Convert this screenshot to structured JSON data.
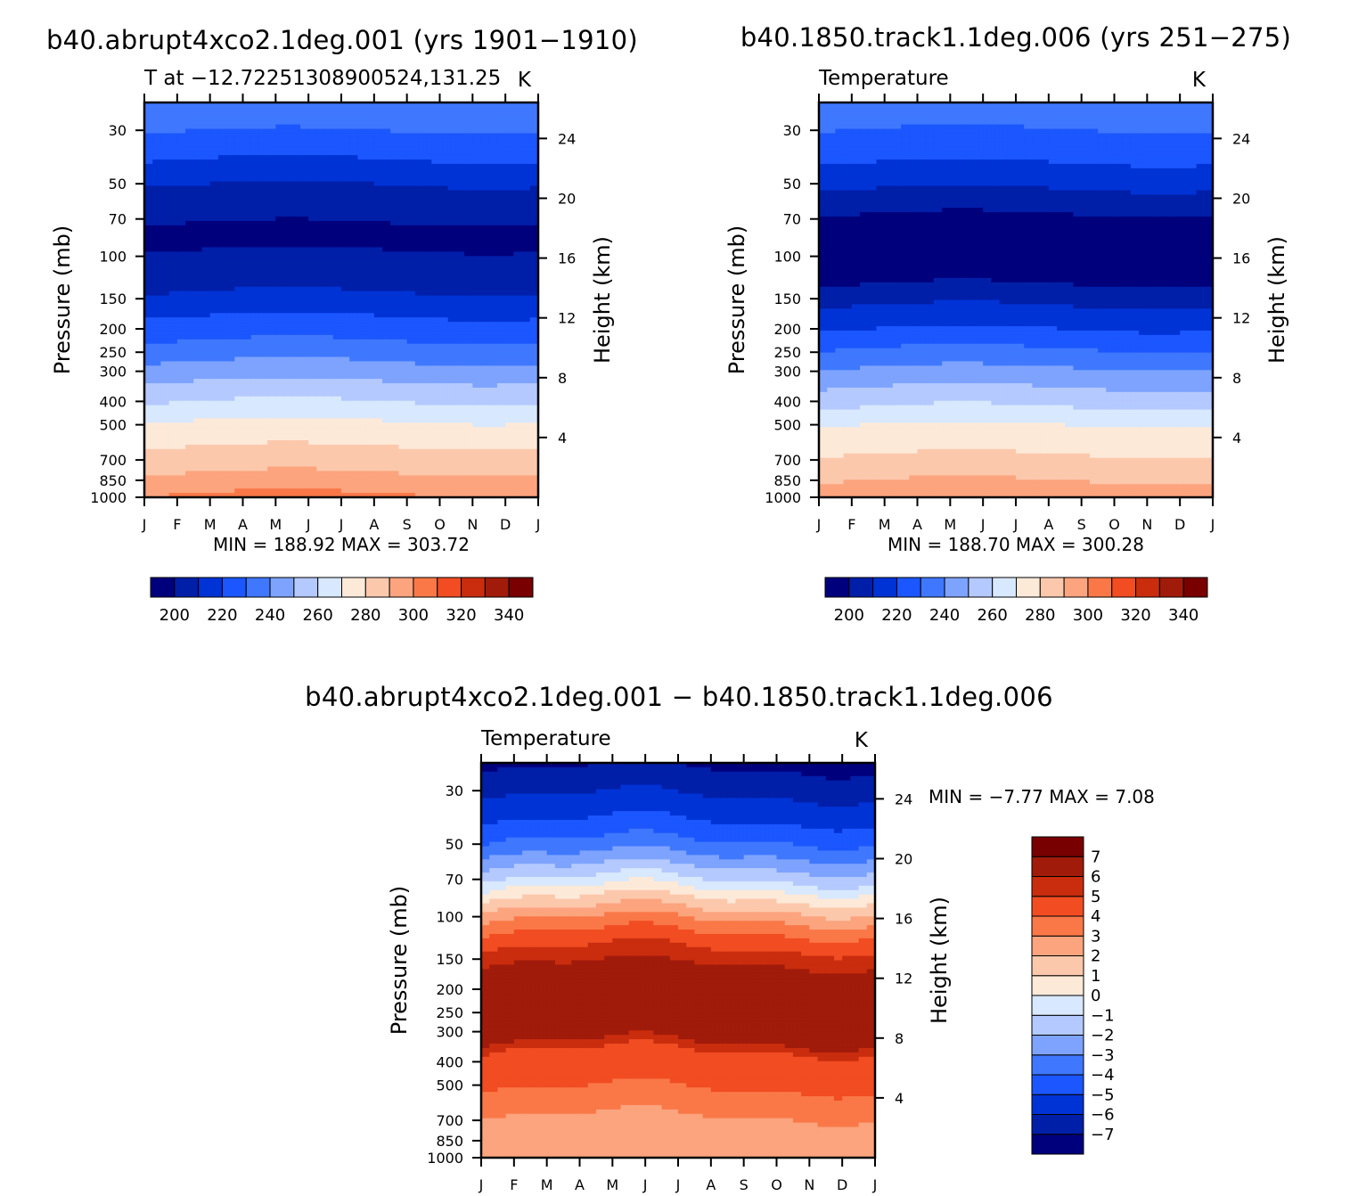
{
  "figure": {
    "title_left": "b40.abrupt4xco2.1deg.001 (yrs 1901−1910)",
    "title_right": "b40.1850.track1.1deg.006 (yrs 251−275)",
    "title_diff": "b40.abrupt4xco2.1deg.001 − b40.1850.track1.1deg.006"
  },
  "chart_data": [
    {
      "type": "heatmap",
      "id": "abrupt4xco2",
      "subtitle_left": "T at −12.72251308900524,131.25",
      "subtitle_right": "K",
      "xlabel": "",
      "ylabel": "Pressure (mb)",
      "ylabel_right": "Height (km)",
      "x_categories": [
        "J",
        "F",
        "M",
        "A",
        "M",
        "J",
        "J",
        "A",
        "S",
        "O",
        "N",
        "D",
        "J"
      ],
      "y_ticks": [
        30,
        50,
        70,
        100,
        150,
        200,
        250,
        300,
        400,
        500,
        700,
        850,
        1000
      ],
      "y_right_ticks": [
        4,
        8,
        12,
        16,
        20,
        24
      ],
      "y_scale": "log",
      "y_range": [
        1000,
        23
      ],
      "stats": "MIN = 188.92 MAX = 303.72",
      "min": 188.92,
      "max": 303.72,
      "colorbar": {
        "orientation": "horizontal",
        "levels": [
          190,
          200,
          210,
          220,
          230,
          240,
          250,
          260,
          270,
          280,
          290,
          300,
          310,
          320,
          330,
          340
        ],
        "labels": [
          "200",
          "220",
          "240",
          "260",
          "280",
          "300",
          "320",
          "340"
        ],
        "colors": [
          "#00007d",
          "#001fa8",
          "#0033d6",
          "#1b56ff",
          "#3f78ff",
          "#7ea3ff",
          "#b4c9ff",
          "#d8e8ff",
          "#fde9d8",
          "#fcc8ac",
          "#fca47e",
          "#fa7848",
          "#f14c22",
          "#c92d0e",
          "#a01b0a",
          "#780000"
        ]
      },
      "profile": [
        {
          "p": 23,
          "value": 239
        },
        {
          "p": 35,
          "value": 225
        },
        {
          "p": 57,
          "value": 205
        },
        {
          "p": 80,
          "value": 198
        },
        {
          "p": 120,
          "value": 203
        },
        {
          "p": 150,
          "value": 213
        },
        {
          "p": 200,
          "value": 225
        },
        {
          "p": 250,
          "value": 235
        },
        {
          "p": 300,
          "value": 245
        },
        {
          "p": 400,
          "value": 260
        },
        {
          "p": 500,
          "value": 272
        },
        {
          "p": 700,
          "value": 285
        },
        {
          "p": 850,
          "value": 293
        },
        {
          "p": 1000,
          "value": 302
        }
      ]
    },
    {
      "type": "heatmap",
      "id": "track1",
      "subtitle_left": "Temperature",
      "subtitle_right": "K",
      "xlabel": "",
      "ylabel": "Pressure (mb)",
      "ylabel_right": "Height (km)",
      "x_categories": [
        "J",
        "F",
        "M",
        "A",
        "M",
        "J",
        "J",
        "A",
        "S",
        "O",
        "N",
        "D",
        "J"
      ],
      "y_ticks": [
        30,
        50,
        70,
        100,
        150,
        200,
        250,
        300,
        400,
        500,
        700,
        850,
        1000
      ],
      "y_right_ticks": [
        4,
        8,
        12,
        16,
        20,
        24
      ],
      "y_scale": "log",
      "y_range": [
        1000,
        23
      ],
      "stats": "MIN = 188.70 MAX = 300.28",
      "min": 188.7,
      "max": 300.28,
      "colorbar": {
        "orientation": "horizontal",
        "levels": [
          190,
          200,
          210,
          220,
          230,
          240,
          250,
          260,
          270,
          280,
          290,
          300,
          310,
          320,
          330,
          340
        ],
        "labels": [
          "200",
          "220",
          "240",
          "260",
          "280",
          "300",
          "320",
          "340"
        ],
        "colors": [
          "#00007d",
          "#001fa8",
          "#0033d6",
          "#1b56ff",
          "#3f78ff",
          "#7ea3ff",
          "#b4c9ff",
          "#d8e8ff",
          "#fde9d8",
          "#fcc8ac",
          "#fca47e",
          "#fa7848",
          "#f14c22",
          "#c92d0e",
          "#a01b0a",
          "#780000"
        ]
      },
      "profile": [
        {
          "p": 23,
          "value": 236
        },
        {
          "p": 35,
          "value": 226
        },
        {
          "p": 50,
          "value": 212
        },
        {
          "p": 70,
          "value": 198
        },
        {
          "p": 120,
          "value": 196
        },
        {
          "p": 150,
          "value": 207
        },
        {
          "p": 200,
          "value": 220
        },
        {
          "p": 250,
          "value": 232
        },
        {
          "p": 300,
          "value": 242
        },
        {
          "p": 400,
          "value": 257
        },
        {
          "p": 500,
          "value": 270
        },
        {
          "p": 700,
          "value": 282
        },
        {
          "p": 850,
          "value": 290
        },
        {
          "p": 1000,
          "value": 298
        }
      ]
    },
    {
      "type": "heatmap",
      "id": "difference",
      "subtitle_left": "Temperature",
      "subtitle_right": "K",
      "xlabel": "",
      "ylabel": "Pressure (mb)",
      "ylabel_right": "Height (km)",
      "x_categories": [
        "J",
        "F",
        "M",
        "A",
        "M",
        "J",
        "J",
        "A",
        "S",
        "O",
        "N",
        "D",
        "J"
      ],
      "y_ticks": [
        30,
        50,
        70,
        100,
        150,
        200,
        250,
        300,
        400,
        500,
        700,
        850,
        1000
      ],
      "y_right_ticks": [
        4,
        8,
        12,
        16,
        20,
        24
      ],
      "y_scale": "log",
      "y_range": [
        1000,
        23
      ],
      "stats": "MIN =  −7.77 MAX =    7.08",
      "min": -7.77,
      "max": 7.08,
      "colorbar": {
        "orientation": "vertical",
        "levels": [
          -8,
          -7,
          -6,
          -5,
          -4,
          -3,
          -2,
          -1,
          0,
          1,
          2,
          3,
          4,
          5,
          6,
          7
        ],
        "labels": [
          "7",
          "6",
          "5",
          "4",
          "3",
          "2",
          "1",
          "0",
          "−1",
          "−2",
          "−3",
          "−4",
          "−5",
          "−6",
          "−7"
        ],
        "colors": [
          "#00007d",
          "#001fa8",
          "#0033d6",
          "#1b56ff",
          "#3f78ff",
          "#7ea3ff",
          "#b4c9ff",
          "#d8e8ff",
          "#fde9d8",
          "#fcc8ac",
          "#fca47e",
          "#fa7848",
          "#f14c22",
          "#c92d0e",
          "#a01b0a",
          "#780000"
        ]
      },
      "profile": [
        {
          "p": 23,
          "value": -7.2
        },
        {
          "p": 30,
          "value": -6.2
        },
        {
          "p": 40,
          "value": -5.0
        },
        {
          "p": 50,
          "value": -3.8
        },
        {
          "p": 60,
          "value": -2.4
        },
        {
          "p": 70,
          "value": -1.0
        },
        {
          "p": 80,
          "value": 0.5
        },
        {
          "p": 95,
          "value": 2.2
        },
        {
          "p": 110,
          "value": 3.6
        },
        {
          "p": 135,
          "value": 5.0
        },
        {
          "p": 160,
          "value": 6.1
        },
        {
          "p": 330,
          "value": 6.1
        },
        {
          "p": 360,
          "value": 5.0
        },
        {
          "p": 500,
          "value": 4.1
        },
        {
          "p": 620,
          "value": 3.4
        },
        {
          "p": 700,
          "value": 2.8
        },
        {
          "p": 900,
          "value": 2.6
        },
        {
          "p": 1000,
          "value": 2.3
        }
      ]
    }
  ]
}
